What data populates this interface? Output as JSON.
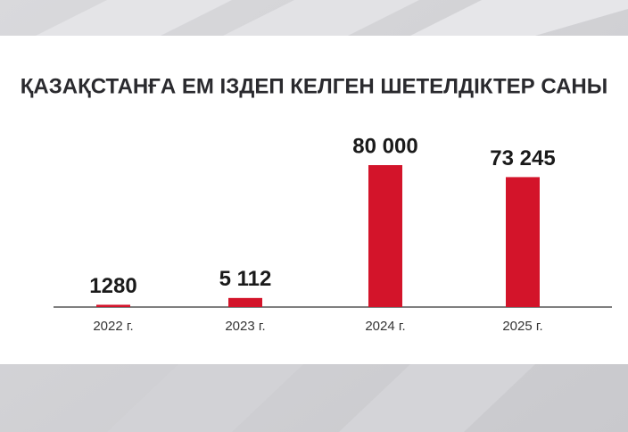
{
  "chart_data": {
    "type": "bar",
    "title": "ҚАЗАҚСТАНҒА ЕМ ІЗДЕП КЕЛГЕН ШЕТЕЛДІКТЕР САНЫ",
    "categories": [
      "2022 г.",
      "2023 г.",
      "2024 г.",
      "2025 г."
    ],
    "values": [
      1280,
      5112,
      80000,
      73245
    ],
    "value_labels": [
      "1280",
      "5 112",
      "80 000",
      "73 245"
    ],
    "color": "#d3142a"
  }
}
